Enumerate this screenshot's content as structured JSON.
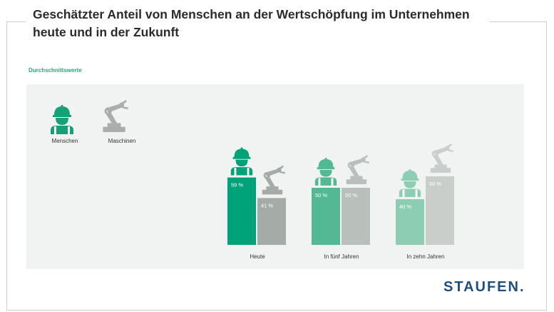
{
  "title": "Geschätzter Anteil von Menschen an der Wertschöpfung im Unternehmen heute und in der Zukunft",
  "subtitle": "Durchschnittswerte",
  "brand": "STAUFEN.",
  "legend": {
    "humans": "Menschen",
    "machines": "Maschinen"
  },
  "colors": {
    "human": [
      "#00a379",
      "#52b994",
      "#8ccdb3"
    ],
    "machine": [
      "#a5aca8",
      "#b9bfbb",
      "#c9cecb"
    ],
    "legend_human": "#16a078",
    "legend_machine": "#a9aeab",
    "brand": "#1f4e79",
    "subtitle": "#2aa57e"
  },
  "chart_data": {
    "type": "bar",
    "categories": [
      "Heute",
      "In fünf Jahren",
      "In zehn Jahren"
    ],
    "series": [
      {
        "name": "Menschen",
        "values": [
          59,
          50,
          40
        ],
        "labels": [
          "59 %",
          "50 %",
          "40 %"
        ]
      },
      {
        "name": "Maschinen",
        "values": [
          41,
          50,
          60
        ],
        "labels": [
          "41 %",
          "50 %",
          "60 %"
        ]
      }
    ],
    "unit": "%",
    "ylim": [
      0,
      100
    ],
    "title": "Geschätzter Anteil von Menschen an der Wertschöpfung im Unternehmen heute und in der Zukunft",
    "xlabel": "",
    "ylabel": ""
  }
}
